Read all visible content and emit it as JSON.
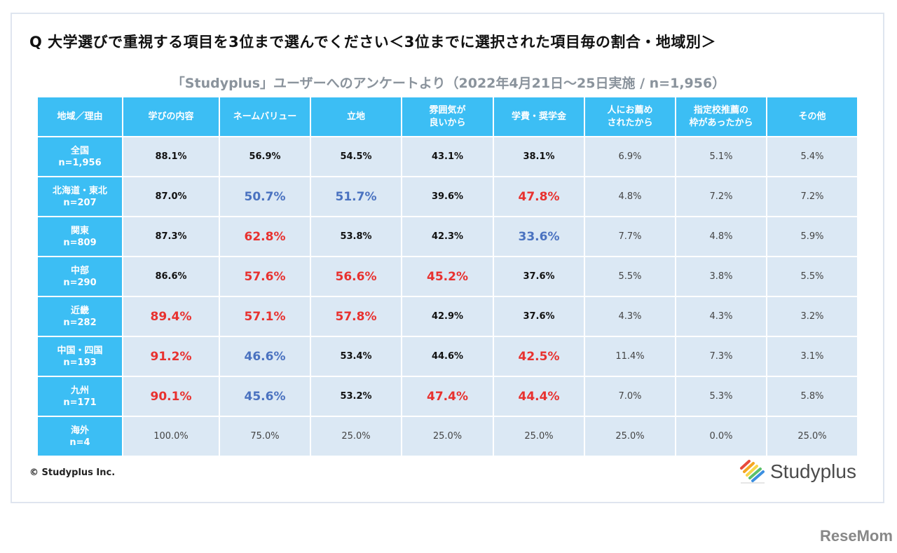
{
  "title": "Q 大学選びで重視する項目を3位まで選んでください＜3位までに選択された項目毎の割合・地域別＞",
  "subtitle": "「Studyplus」ユーザーへのアンケートより（2022年4月21日～25日実施 / n=1,956）",
  "copyright": "© Studyplus Inc.",
  "logo": "Studyplus",
  "watermark": "ReseMom",
  "colors": {
    "header": "#3cbef4",
    "cell": "#dbe8f4",
    "highlight_red": "#e8312f",
    "highlight_blue": "#4a72c0"
  },
  "chart_data": {
    "type": "table",
    "columns": [
      "地域／理由",
      "学びの内容",
      "ネームバリュー",
      "立地",
      "雰囲気が\n良いから",
      "学費・奨学金",
      "人にお薦め\nされたから",
      "指定校推薦の\n枠があったから",
      "その他"
    ],
    "rows": [
      {
        "label": "全国\nn=1,956",
        "values": [
          "88.1%",
          "56.9%",
          "54.5%",
          "43.1%",
          "38.1%",
          "6.9%",
          "5.1%",
          "5.4%"
        ],
        "highlight": [
          "",
          "",
          "",
          "",
          "",
          "",
          "",
          ""
        ]
      },
      {
        "label": "北海道・東北\nn=207",
        "values": [
          "87.0%",
          "50.7%",
          "51.7%",
          "39.6%",
          "47.8%",
          "4.8%",
          "7.2%",
          "7.2%"
        ],
        "highlight": [
          "",
          "blue",
          "blue",
          "",
          "red",
          "",
          "",
          ""
        ]
      },
      {
        "label": "関東\nn=809",
        "values": [
          "87.3%",
          "62.8%",
          "53.8%",
          "42.3%",
          "33.6%",
          "7.7%",
          "4.8%",
          "5.9%"
        ],
        "highlight": [
          "",
          "red",
          "",
          "",
          "blue",
          "",
          "",
          ""
        ]
      },
      {
        "label": "中部\nn=290",
        "values": [
          "86.6%",
          "57.6%",
          "56.6%",
          "45.2%",
          "37.6%",
          "5.5%",
          "3.8%",
          "5.5%"
        ],
        "highlight": [
          "",
          "red",
          "red",
          "red",
          "",
          "",
          "",
          ""
        ]
      },
      {
        "label": "近畿\nn=282",
        "values": [
          "89.4%",
          "57.1%",
          "57.8%",
          "42.9%",
          "37.6%",
          "4.3%",
          "4.3%",
          "3.2%"
        ],
        "highlight": [
          "red",
          "red",
          "red",
          "",
          "",
          "",
          "",
          ""
        ]
      },
      {
        "label": "中国・四国\nn=193",
        "values": [
          "91.2%",
          "46.6%",
          "53.4%",
          "44.6%",
          "42.5%",
          "11.4%",
          "7.3%",
          "3.1%"
        ],
        "highlight": [
          "red",
          "blue",
          "",
          "",
          "red",
          "",
          "",
          ""
        ]
      },
      {
        "label": "九州\nn=171",
        "values": [
          "90.1%",
          "45.6%",
          "53.2%",
          "47.4%",
          "44.4%",
          "7.0%",
          "5.3%",
          "5.8%"
        ],
        "highlight": [
          "red",
          "blue",
          "",
          "red",
          "red",
          "",
          "",
          ""
        ]
      },
      {
        "label": "海外\nn=4",
        "values": [
          "100.0%",
          "75.0%",
          "25.0%",
          "25.0%",
          "25.0%",
          "25.0%",
          "0.0%",
          "25.0%"
        ],
        "highlight": [
          "",
          "",
          "",
          "",
          "",
          "",
          "",
          ""
        ]
      }
    ]
  }
}
